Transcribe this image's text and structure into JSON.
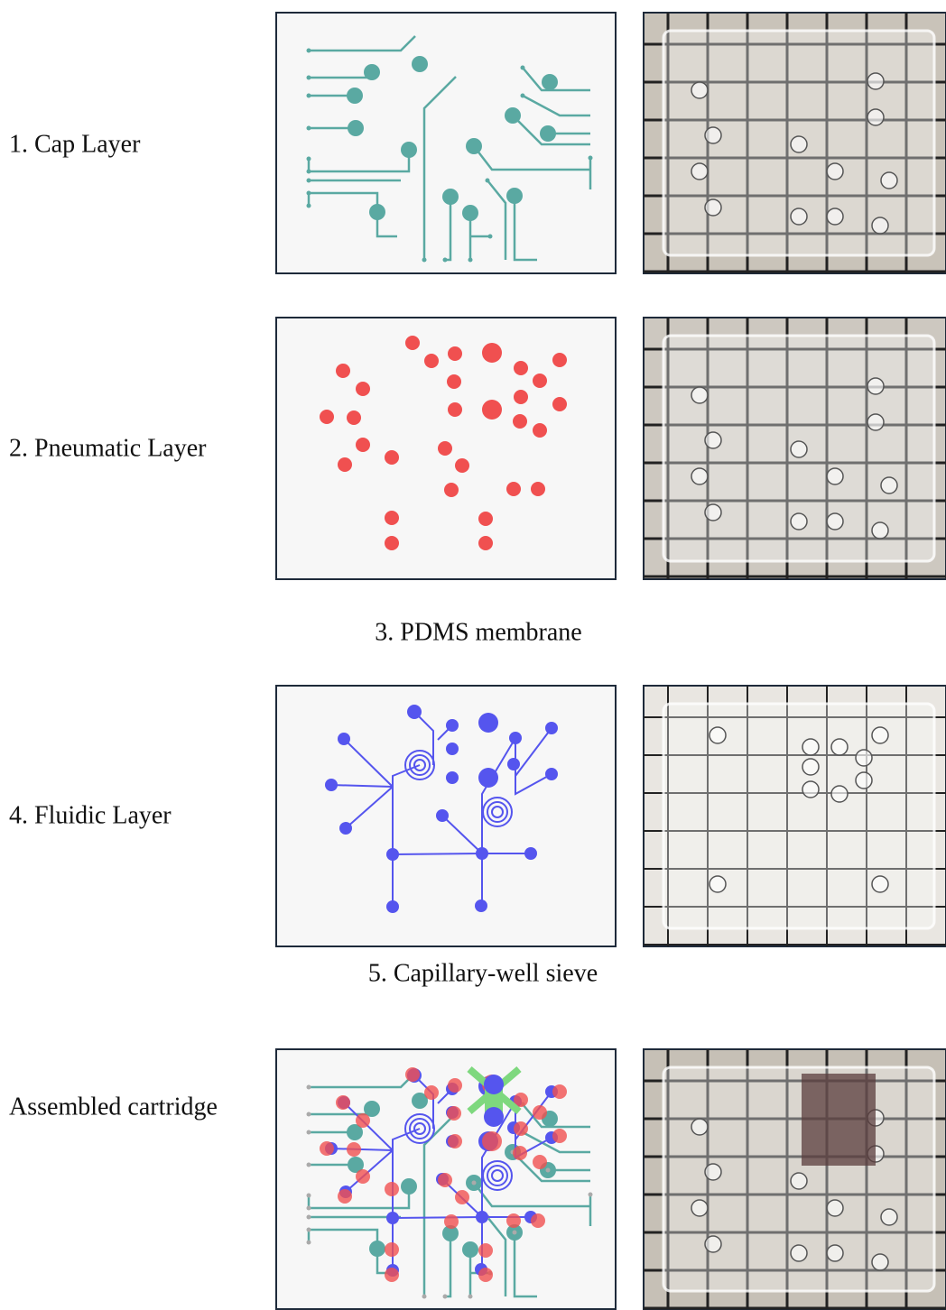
{
  "labels": {
    "cap": "1. Cap Layer",
    "pneumatic": "2. Pneumatic Layer",
    "membrane": "3. PDMS membrane",
    "fluidic": "4. Fluidic Layer",
    "sieve": "5. Capillary-well sieve",
    "assembled": "Assembled cartridge"
  }
}
